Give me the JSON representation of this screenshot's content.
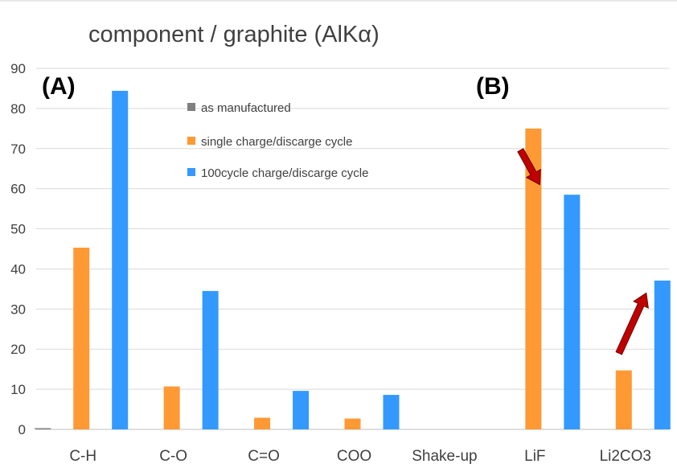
{
  "chart_data": {
    "type": "bar",
    "title": "component / graphite (AlKα)",
    "xlabel": "",
    "ylabel": "",
    "ylim": [
      0,
      90
    ],
    "yticks": [
      0,
      10,
      20,
      30,
      40,
      50,
      60,
      70,
      80,
      90
    ],
    "grid": true,
    "categories": [
      "C-H",
      "C-O",
      "C=O",
      "COO",
      "Shake-up",
      "LiF",
      "Li2CO3"
    ],
    "series": [
      {
        "name": "as manufactured",
        "color": "#7f7f7f",
        "values": [
          0.3,
          0,
          0,
          0,
          0,
          0,
          0
        ]
      },
      {
        "name": "single charge/discarge cycle",
        "color": "#ff9933",
        "values": [
          45.3,
          10.7,
          2.9,
          2.7,
          0,
          75.0,
          14.7
        ]
      },
      {
        "name": "100cycle charge/discarge cycle",
        "color": "#3399ff",
        "values": [
          84.4,
          34.5,
          9.6,
          8.6,
          0,
          58.5,
          37.1
        ]
      }
    ],
    "legend_position": "top-center",
    "annotations": [
      {
        "text": "(A)",
        "near": "C-H"
      },
      {
        "text": "(B)",
        "near": "LiF"
      }
    ],
    "arrows": [
      {
        "category": "LiF",
        "direction": "down",
        "from_value": 68,
        "to_value": 61,
        "color": "#c00000"
      },
      {
        "category": "Li2CO3",
        "direction": "up",
        "from_value": 19,
        "to_value": 34,
        "color": "#c00000"
      }
    ]
  }
}
